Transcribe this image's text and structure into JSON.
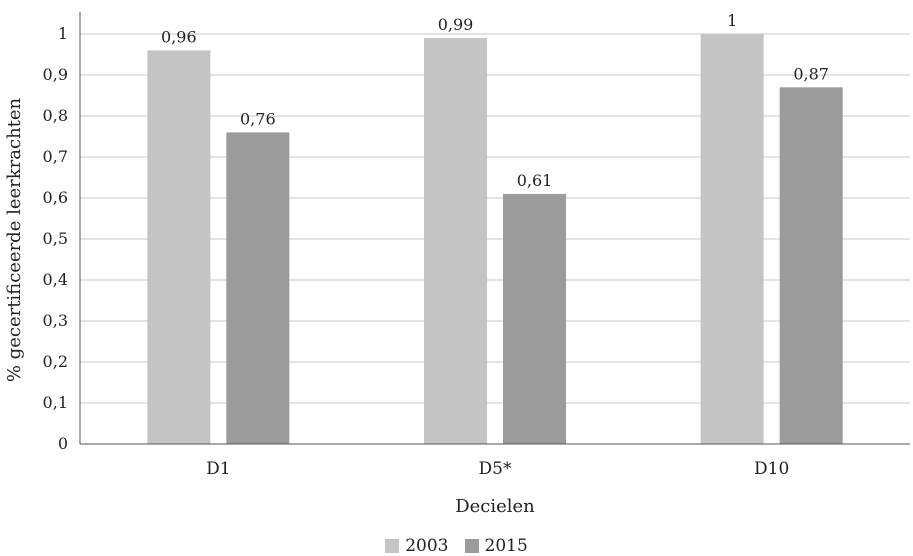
{
  "chart_data": {
    "type": "bar",
    "categories": [
      "D1",
      "D5*",
      "D10"
    ],
    "series": [
      {
        "name": "2003",
        "values": [
          0.96,
          0.99,
          1
        ],
        "labels": [
          "0,96",
          "0,99",
          "1"
        ],
        "color": "#c4c4c4"
      },
      {
        "name": "2015",
        "values": [
          0.76,
          0.61,
          0.87
        ],
        "labels": [
          "0,76",
          "0,61",
          "0,87"
        ],
        "color": "#9b9b9a"
      }
    ],
    "xlabel": "Decielen",
    "ylabel": "% gecertificeerde leerkrachten",
    "ylim": [
      0,
      1
    ],
    "yticks": [
      0,
      0.1,
      0.2,
      0.3,
      0.4,
      0.5,
      0.6,
      0.7,
      0.8,
      0.9,
      1
    ],
    "ytick_labels": [
      "0",
      "0,1",
      "0,2",
      "0,3",
      "0,4",
      "0,5",
      "0,6",
      "0,7",
      "0,8",
      "0,9",
      "1"
    ],
    "grid": true,
    "legend_position": "bottom"
  }
}
